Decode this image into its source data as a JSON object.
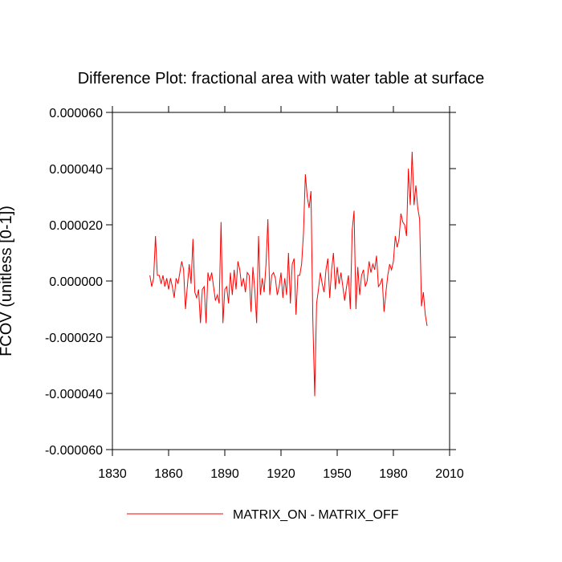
{
  "chart_data": {
    "type": "line",
    "title": "Difference Plot: fractional area with water table at surface",
    "y_label": "FCOV  (unitless [0-1])",
    "x": [
      1850,
      1851,
      1852,
      1853,
      1854,
      1855,
      1856,
      1857,
      1858,
      1859,
      1860,
      1861,
      1862,
      1863,
      1864,
      1865,
      1866,
      1867,
      1868,
      1869,
      1870,
      1871,
      1872,
      1873,
      1874,
      1875,
      1876,
      1877,
      1878,
      1879,
      1880,
      1881,
      1882,
      1883,
      1884,
      1885,
      1886,
      1887,
      1888,
      1889,
      1890,
      1891,
      1892,
      1893,
      1894,
      1895,
      1896,
      1897,
      1898,
      1899,
      1900,
      1901,
      1902,
      1903,
      1904,
      1905,
      1906,
      1907,
      1908,
      1909,
      1910,
      1911,
      1912,
      1913,
      1914,
      1915,
      1916,
      1917,
      1918,
      1919,
      1920,
      1921,
      1922,
      1923,
      1924,
      1925,
      1926,
      1927,
      1928,
      1929,
      1930,
      1931,
      1932,
      1933,
      1934,
      1935,
      1936,
      1937,
      1938,
      1939,
      1940,
      1941,
      1942,
      1943,
      1944,
      1945,
      1946,
      1947,
      1948,
      1949,
      1950,
      1951,
      1952,
      1953,
      1954,
      1955,
      1956,
      1957,
      1958,
      1959,
      1960,
      1961,
      1962,
      1963,
      1964,
      1965,
      1966,
      1967,
      1968,
      1969,
      1970,
      1971,
      1972,
      1973,
      1974,
      1975,
      1976,
      1977,
      1978,
      1979,
      1980,
      1981,
      1982,
      1983,
      1984,
      1985,
      1986,
      1987,
      1988,
      1989,
      1990,
      1991,
      1992,
      1993,
      1994,
      1995,
      1996,
      1997,
      1998
    ],
    "series": [
      {
        "name": "MATRIX_ON - MATRIX_OFF",
        "color": "#ff0000",
        "values": [
          2e-06,
          -2e-06,
          1e-06,
          1.6e-05,
          2e-06,
          2e-06,
          -1e-06,
          2e-06,
          -2e-06,
          1e-06,
          -3e-06,
          1e-06,
          -2e-06,
          -6e-06,
          1e-06,
          -1e-06,
          3e-06,
          7e-06,
          4e-06,
          -1e-05,
          -2e-06,
          6e-06,
          -1e-06,
          1.5e-05,
          -4e-06,
          -6e-06,
          -3e-06,
          -1.5e-05,
          -3e-06,
          -2e-06,
          -1.5e-05,
          3e-06,
          0,
          3e-06,
          -2e-06,
          -7e-06,
          -5e-06,
          -8e-06,
          2.1e-05,
          -1.5e-05,
          -3e-06,
          -2e-06,
          -8e-06,
          3e-06,
          -5e-06,
          4e-06,
          -3e-06,
          7e-06,
          4e-06,
          -2e-06,
          1e-06,
          -4e-06,
          3e-06,
          2e-06,
          -1.1e-05,
          5e-06,
          -3e-06,
          -1.5e-05,
          1.6e-05,
          -5e-06,
          1e-06,
          -4e-06,
          6e-06,
          2.2e-05,
          -5e-06,
          2e-06,
          3e-06,
          1e-06,
          -5e-06,
          -2e-06,
          3e-06,
          -6e-06,
          1e-06,
          -5e-06,
          1e-05,
          -8e-06,
          6e-06,
          8e-06,
          -1.2e-05,
          2e-06,
          2e-06,
          6e-06,
          1.7e-05,
          3.8e-05,
          3e-05,
          2.6e-05,
          3.2e-05,
          -1.4e-05,
          -4.1e-05,
          -8e-06,
          -3e-06,
          3e-06,
          -1e-06,
          -4e-06,
          4e-06,
          8e-06,
          -6e-06,
          4e-06,
          1e-05,
          -3e-06,
          5e-06,
          -1e-06,
          3e-06,
          -2e-06,
          -7e-06,
          -2e-06,
          2e-06,
          -1e-05,
          1.8e-05,
          2.5e-05,
          -1e-05,
          5e-06,
          -5e-06,
          2e-06,
          4e-06,
          -2e-06,
          0,
          7e-06,
          3e-06,
          6e-06,
          4e-06,
          9e-06,
          -2e-06,
          -1e-06,
          1e-06,
          -1.1e-05,
          -4e-06,
          2e-06,
          6e-06,
          4e-06,
          7e-06,
          1.6e-05,
          1.2e-05,
          1.5e-05,
          2.4e-05,
          2.1e-05,
          2e-05,
          1.6e-05,
          4e-05,
          2.7e-05,
          4.6e-05,
          2.7e-05,
          3.4e-05,
          2.6e-05,
          2.2e-05,
          -9e-06,
          -4e-06,
          -1.2e-05,
          -1.6e-05
        ]
      }
    ],
    "xlim": [
      1830,
      2010
    ],
    "xticks": [
      1830,
      1860,
      1890,
      1920,
      1950,
      1980,
      2010
    ],
    "ylim": [
      -6e-05,
      6e-05
    ],
    "yticks": [
      {
        "value": -6e-05,
        "label": "-0.000060"
      },
      {
        "value": -4e-05,
        "label": "-0.000040"
      },
      {
        "value": -2e-05,
        "label": "-0.000020"
      },
      {
        "value": 0,
        "label": "0.000000"
      },
      {
        "value": 2e-05,
        "label": "0.000020"
      },
      {
        "value": 4e-05,
        "label": "0.000040"
      },
      {
        "value": 6e-05,
        "label": "0.000060"
      }
    ],
    "legend": "bottom"
  }
}
